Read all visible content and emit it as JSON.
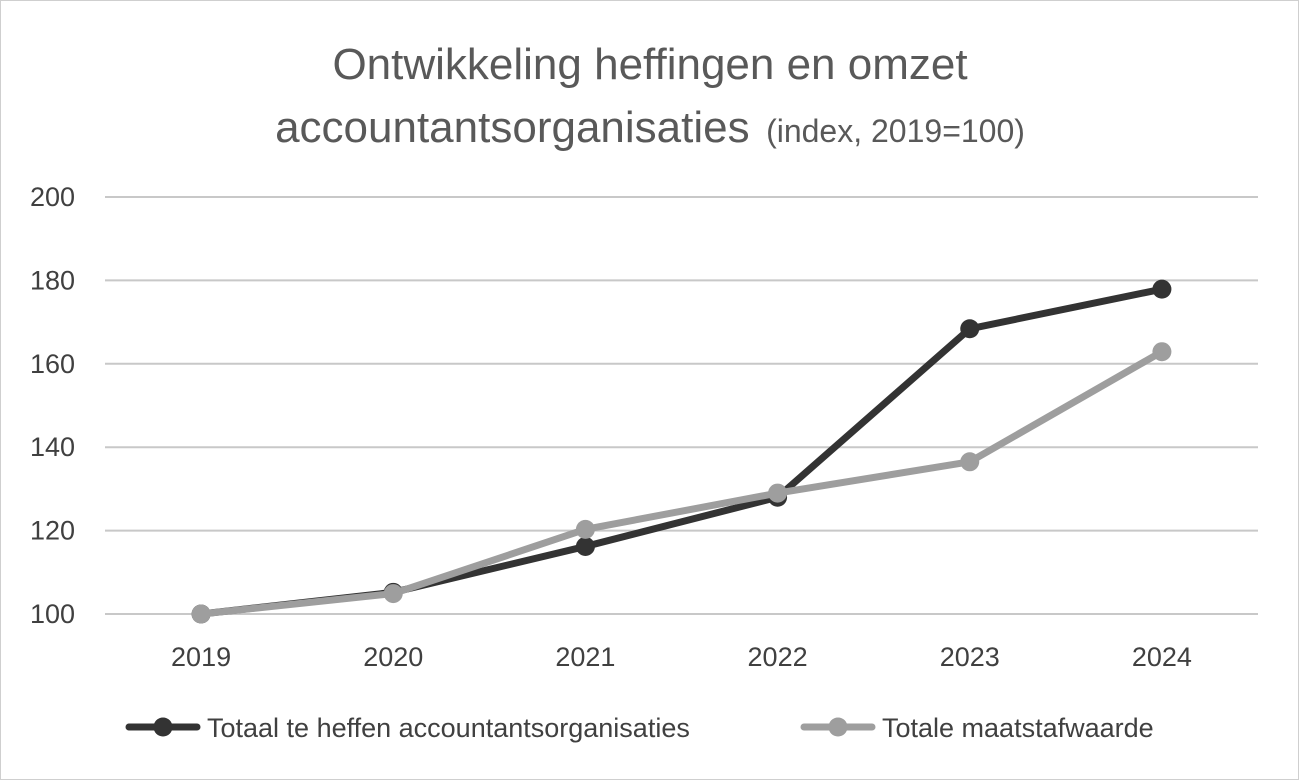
{
  "chart_data": {
    "type": "line",
    "title": "Ontwikkeling heffingen en omzet",
    "title_line2": "accountantsorganisaties",
    "subtitle": "(index, 2019=100)",
    "xlabel": "",
    "ylabel": "",
    "categories": [
      "2019",
      "2020",
      "2021",
      "2022",
      "2023",
      "2024"
    ],
    "ylim": [
      100,
      200
    ],
    "yticks": [
      100,
      120,
      140,
      160,
      180,
      200
    ],
    "grid": true,
    "legend_position": "bottom",
    "series": [
      {
        "name": "Totaal te heffen accountantsorganisaties",
        "color": "#333333",
        "values": [
          100,
          105.2,
          116.2,
          128.0,
          168.4,
          177.9
        ]
      },
      {
        "name": "Totale maatstafwaarde",
        "color": "#9e9e9e",
        "values": [
          100,
          104.9,
          120.3,
          129.0,
          136.5,
          162.9
        ]
      }
    ]
  }
}
